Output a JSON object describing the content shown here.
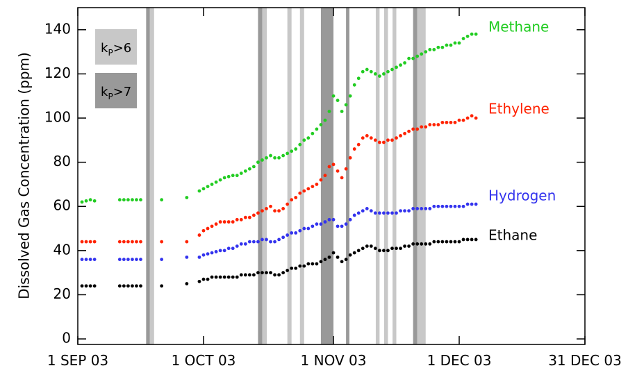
{
  "chart_data": {
    "type": "scatter",
    "y_label": "Dissolved Gas Concentration (ppm)",
    "xlim": [
      0,
      121
    ],
    "xticks": [
      {
        "value": 0,
        "label": "1 SEP 03"
      },
      {
        "value": 30,
        "label": "1 OCT 03"
      },
      {
        "value": 61,
        "label": "1 NOV 03"
      },
      {
        "value": 91,
        "label": "1 DEC 03"
      },
      {
        "value": 121,
        "label": "31 DEC 03"
      }
    ],
    "ylim": [
      -2.5,
      150
    ],
    "yticks": [
      0,
      20,
      40,
      60,
      80,
      100,
      120,
      140
    ],
    "legend": [
      {
        "symbol": "k",
        "subscript": "P",
        "text": ">6",
        "color": "#c8c8c8"
      },
      {
        "symbol": "k",
        "subscript": "P",
        "text": ">7",
        "color": "#999999"
      }
    ],
    "bands": [
      {
        "start": 16.3,
        "end": 17.2,
        "legend": 1
      },
      {
        "start": 17.2,
        "end": 18.2,
        "legend": 0
      },
      {
        "start": 43,
        "end": 44,
        "legend": 1
      },
      {
        "start": 44,
        "end": 45.1,
        "legend": 0
      },
      {
        "start": 50,
        "end": 51,
        "legend": 0
      },
      {
        "start": 53,
        "end": 54,
        "legend": 0
      },
      {
        "start": 58,
        "end": 61,
        "legend": 1
      },
      {
        "start": 64,
        "end": 64.8,
        "legend": 1
      },
      {
        "start": 71.1,
        "end": 72,
        "legend": 0
      },
      {
        "start": 73.1,
        "end": 74,
        "legend": 0
      },
      {
        "start": 75.1,
        "end": 76,
        "legend": 0
      },
      {
        "start": 80,
        "end": 81,
        "legend": 1
      },
      {
        "start": 81,
        "end": 83,
        "legend": 0
      }
    ],
    "x": [
      1,
      2,
      3,
      4,
      10,
      11,
      12,
      13,
      14,
      15,
      20,
      26,
      29,
      30,
      31,
      32,
      33,
      34,
      35,
      36,
      37,
      38,
      39,
      40,
      41,
      42,
      43,
      44,
      45,
      46,
      47,
      48,
      49,
      50,
      51,
      52,
      53,
      54,
      55,
      56,
      57,
      58,
      59,
      60,
      61,
      62,
      63,
      64,
      65,
      66,
      67,
      68,
      69,
      70,
      71,
      72,
      73,
      74,
      75,
      76,
      77,
      78,
      79,
      80,
      81,
      82,
      83,
      84,
      85,
      86,
      87,
      88,
      89,
      90,
      91,
      92,
      93,
      94,
      95
    ],
    "series": [
      {
        "name": "Methane",
        "color": "#22cc22",
        "values": [
          62,
          62.5,
          63,
          62.5,
          63,
          63,
          63,
          63,
          63,
          63,
          63,
          64,
          67,
          68,
          69,
          70,
          71,
          72,
          73,
          73.5,
          74,
          74,
          75,
          76,
          77,
          78,
          80,
          81,
          82,
          83,
          82,
          82,
          83,
          84,
          85,
          86,
          88,
          90,
          91,
          93,
          95,
          97,
          99,
          103,
          110,
          108,
          103,
          106,
          110,
          115,
          118,
          121,
          122,
          121,
          120,
          119,
          120,
          121,
          122,
          123,
          124,
          125,
          127,
          127,
          128,
          129,
          130,
          131,
          131,
          132,
          132,
          133,
          133,
          134,
          134,
          136,
          137,
          138,
          138
        ]
      },
      {
        "name": "Ethylene",
        "color": "#ff2200",
        "values": [
          44,
          44,
          44,
          44,
          44,
          44,
          44,
          44,
          44,
          44,
          44,
          44,
          47,
          49,
          50,
          51,
          52,
          53,
          53,
          53,
          53,
          54,
          54,
          55,
          55,
          56,
          57,
          58,
          59,
          60,
          58,
          58,
          59,
          61,
          63,
          64,
          66,
          67,
          68,
          69,
          70,
          72,
          74,
          78,
          79,
          76,
          73,
          77,
          82,
          86,
          88,
          91,
          92,
          91,
          90,
          89,
          89,
          90,
          90,
          91,
          92,
          93,
          94,
          95,
          95,
          96,
          96,
          97,
          97,
          97,
          98,
          98,
          98,
          98,
          99,
          99,
          100,
          101,
          100
        ]
      },
      {
        "name": "Hydrogen",
        "color": "#3333ee",
        "values": [
          36,
          36,
          36,
          36,
          36,
          36,
          36,
          36,
          36,
          36,
          36,
          37,
          37,
          38,
          38.5,
          39,
          39.5,
          40,
          40,
          41,
          41,
          42,
          43,
          43,
          44,
          44,
          44,
          45,
          45,
          44,
          44,
          45,
          46,
          47,
          48,
          48,
          49,
          50,
          50,
          51,
          52,
          52,
          53,
          54,
          54,
          51,
          51,
          52,
          54,
          56,
          57,
          58,
          59,
          58,
          57,
          57,
          57,
          57,
          57,
          57,
          58,
          58,
          58,
          59,
          59,
          59,
          59,
          59,
          60,
          60,
          60,
          60,
          60,
          60,
          60,
          60,
          61,
          61,
          61
        ]
      },
      {
        "name": "Ethane",
        "color": "#000000",
        "values": [
          24,
          24,
          24,
          24,
          24,
          24,
          24,
          24,
          24,
          24,
          24,
          25,
          26,
          27,
          27,
          28,
          28,
          28,
          28,
          28,
          28,
          28,
          29,
          29,
          29,
          29,
          30,
          30,
          30,
          30,
          29,
          29,
          30,
          31,
          32,
          32,
          33,
          33,
          34,
          34,
          34,
          35,
          36,
          37,
          39,
          37,
          35,
          36,
          38,
          39,
          40,
          41,
          42,
          42,
          41,
          40,
          40,
          40,
          41,
          41,
          41,
          42,
          42,
          43,
          43,
          43,
          43,
          43,
          44,
          44,
          44,
          44,
          44,
          44,
          44,
          45,
          45,
          45,
          45
        ]
      }
    ]
  }
}
